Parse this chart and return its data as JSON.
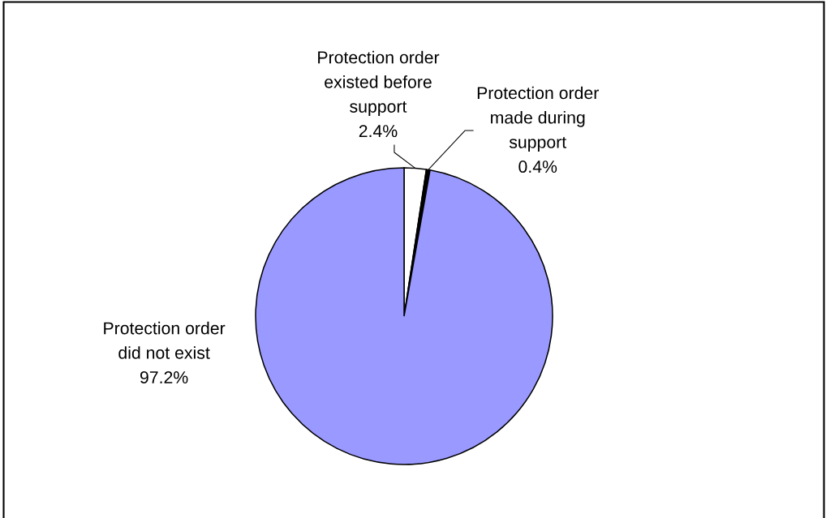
{
  "chart_data": {
    "type": "pie",
    "categories": [
      "Protection order\nexisted before\nsupport",
      "Protection order\nmade during\nsupport",
      "Protection order\ndid not exist"
    ],
    "values": [
      2.4,
      0.4,
      97.2
    ],
    "colors": [
      "#ffffff",
      "#000000",
      "#9999ff"
    ],
    "value_labels": [
      "2.4%",
      "0.4%",
      "97.2%"
    ]
  }
}
